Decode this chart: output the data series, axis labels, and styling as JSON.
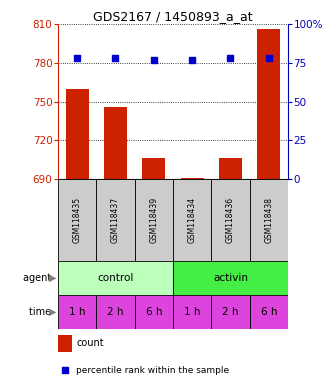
{
  "title": "GDS2167 / 1450893_a_at",
  "samples": [
    "GSM118435",
    "GSM118437",
    "GSM118439",
    "GSM118434",
    "GSM118436",
    "GSM118438"
  ],
  "count_values": [
    760,
    746,
    706,
    691,
    706,
    806
  ],
  "percentile_values": [
    78,
    78,
    77,
    77,
    78,
    78
  ],
  "ylim_left": [
    690,
    810
  ],
  "ylim_right": [
    0,
    100
  ],
  "yticks_left": [
    690,
    720,
    750,
    780,
    810
  ],
  "yticks_right": [
    0,
    25,
    50,
    75,
    100
  ],
  "bar_color": "#cc2200",
  "dot_color": "#0000cc",
  "agent_colors": [
    "#bbffbb",
    "#44ee44"
  ],
  "time_color": "#dd44dd",
  "time_labels": [
    "1 h",
    "2 h",
    "6 h",
    "1 h",
    "2 h",
    "6 h"
  ],
  "legend_count_color": "#cc2200",
  "legend_dot_color": "#0000cc",
  "x_positions": [
    0,
    1,
    2,
    3,
    4,
    5
  ],
  "bar_width": 0.6,
  "left_tick_color": "#cc2200",
  "right_tick_color": "#0000bb",
  "sample_bg": "#cccccc"
}
